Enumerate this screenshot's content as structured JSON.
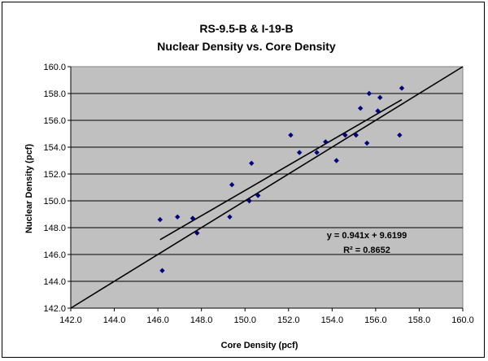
{
  "chart_data": {
    "type": "scatter",
    "title": "RS-9.5-B & I-19-B",
    "subtitle": "Nuclear Density vs. Core Density",
    "xlabel": "Core Density (pcf)",
    "ylabel": "Nuclear Density (pcf)",
    "xlim": [
      142.0,
      160.0
    ],
    "ylim": [
      142.0,
      160.0
    ],
    "xticks": [
      "142.0",
      "144.0",
      "146.0",
      "148.0",
      "150.0",
      "152.0",
      "154.0",
      "156.0",
      "158.0",
      "160.0"
    ],
    "yticks": [
      "142.0",
      "144.0",
      "146.0",
      "148.0",
      "150.0",
      "152.0",
      "154.0",
      "156.0",
      "158.0",
      "160.0"
    ],
    "grid": true,
    "plot_background": "#c0c0c0",
    "marker_color": "#000080",
    "points": [
      {
        "x": 146.1,
        "y": 148.6
      },
      {
        "x": 146.2,
        "y": 144.8
      },
      {
        "x": 146.9,
        "y": 148.8
      },
      {
        "x": 147.6,
        "y": 148.7
      },
      {
        "x": 147.8,
        "y": 147.6
      },
      {
        "x": 149.3,
        "y": 148.8
      },
      {
        "x": 149.4,
        "y": 151.2
      },
      {
        "x": 150.2,
        "y": 150.0
      },
      {
        "x": 150.3,
        "y": 152.8
      },
      {
        "x": 150.6,
        "y": 150.4
      },
      {
        "x": 152.1,
        "y": 154.9
      },
      {
        "x": 152.5,
        "y": 153.6
      },
      {
        "x": 153.3,
        "y": 153.6
      },
      {
        "x": 153.7,
        "y": 154.4
      },
      {
        "x": 154.2,
        "y": 153.0
      },
      {
        "x": 154.6,
        "y": 154.9
      },
      {
        "x": 155.1,
        "y": 154.9
      },
      {
        "x": 155.3,
        "y": 156.9
      },
      {
        "x": 155.6,
        "y": 154.3
      },
      {
        "x": 155.7,
        "y": 158.0
      },
      {
        "x": 156.1,
        "y": 156.7
      },
      {
        "x": 156.2,
        "y": 157.7
      },
      {
        "x": 157.1,
        "y": 154.9
      },
      {
        "x": 157.2,
        "y": 158.4
      }
    ],
    "trendline": {
      "slope": 0.941,
      "intercept": 9.6199,
      "x_range": [
        146.1,
        157.2
      ]
    },
    "equality_line": {
      "from": [
        142.0,
        142.0
      ],
      "to": [
        160.0,
        160.0
      ]
    },
    "annotation": {
      "equation": "y = 0.941x + 9.6199",
      "r2": "R² = 0.8652"
    }
  }
}
